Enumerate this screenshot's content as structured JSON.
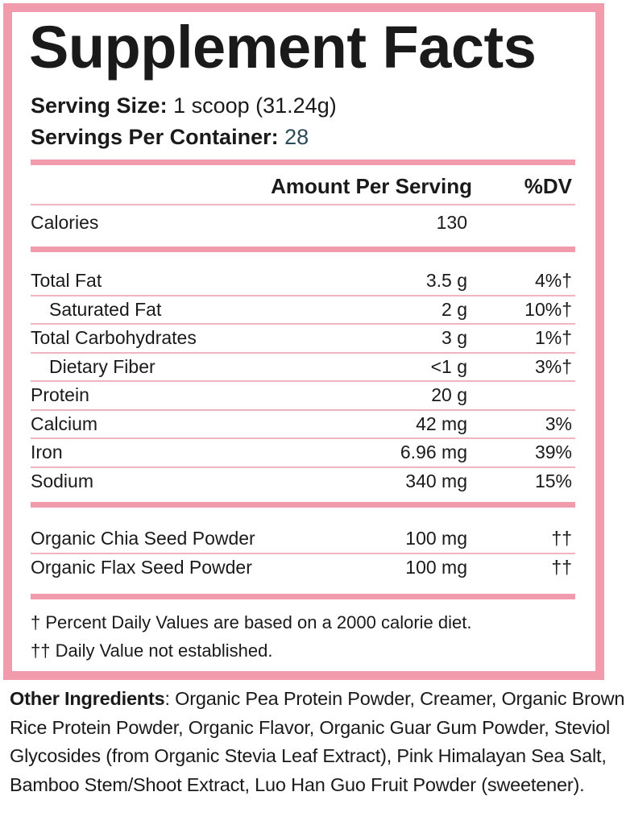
{
  "title": "Supplement Facts",
  "serving_size": {
    "label": "Serving Size:",
    "value": "1 scoop (31.24g)"
  },
  "servings_per_container": {
    "label": "Servings Per Container:",
    "value": "28"
  },
  "header": {
    "amount": "Amount Per Serving",
    "dv": "%DV"
  },
  "calories": {
    "name": "Calories",
    "amount": "130",
    "dv": ""
  },
  "nutrients": [
    {
      "name": "Total Fat",
      "amount": "3.5 g",
      "dv": "4%†",
      "indent": false
    },
    {
      "name": "Saturated Fat",
      "amount": "2 g",
      "dv": "10%†",
      "indent": true
    },
    {
      "name": "Total Carbohydrates",
      "amount": "3 g",
      "dv": "1%†",
      "indent": false
    },
    {
      "name": "Dietary Fiber",
      "amount": "<1 g",
      "dv": "3%†",
      "indent": true
    },
    {
      "name": "Protein",
      "amount": "20 g",
      "dv": "",
      "indent": false
    },
    {
      "name": "Calcium",
      "amount": "42 mg",
      "dv": "3%",
      "indent": false
    },
    {
      "name": "Iron",
      "amount": "6.96 mg",
      "dv": "39%",
      "indent": false
    },
    {
      "name": "Sodium",
      "amount": "340 mg",
      "dv": "15%",
      "indent": false
    }
  ],
  "other_nutrients": [
    {
      "name": "Organic Chia Seed Powder",
      "amount": "100 mg",
      "dv": "††"
    },
    {
      "name": "Organic Flax Seed Powder",
      "amount": "100 mg",
      "dv": "††"
    }
  ],
  "footnotes": [
    "† Percent Daily Values are based on a 2000 calorie diet.",
    "†† Daily Value not established."
  ],
  "other_ingredients": {
    "label": "Other Ingredients",
    "text": ": Organic Pea Protein Powder, Creamer, Organic Brown Rice Protein Powder, Organic Flavor, Organic Guar Gum Powder, Steviol Glycosides (from Organic Stevia Leaf Extract), Pink Himalayan Sea Salt, Bamboo Stem/Shoot Extract, Luo Han Guo Fruit Powder (sweetener)."
  },
  "colors": {
    "accent": "#f29bad",
    "text": "#1a1a1a"
  }
}
